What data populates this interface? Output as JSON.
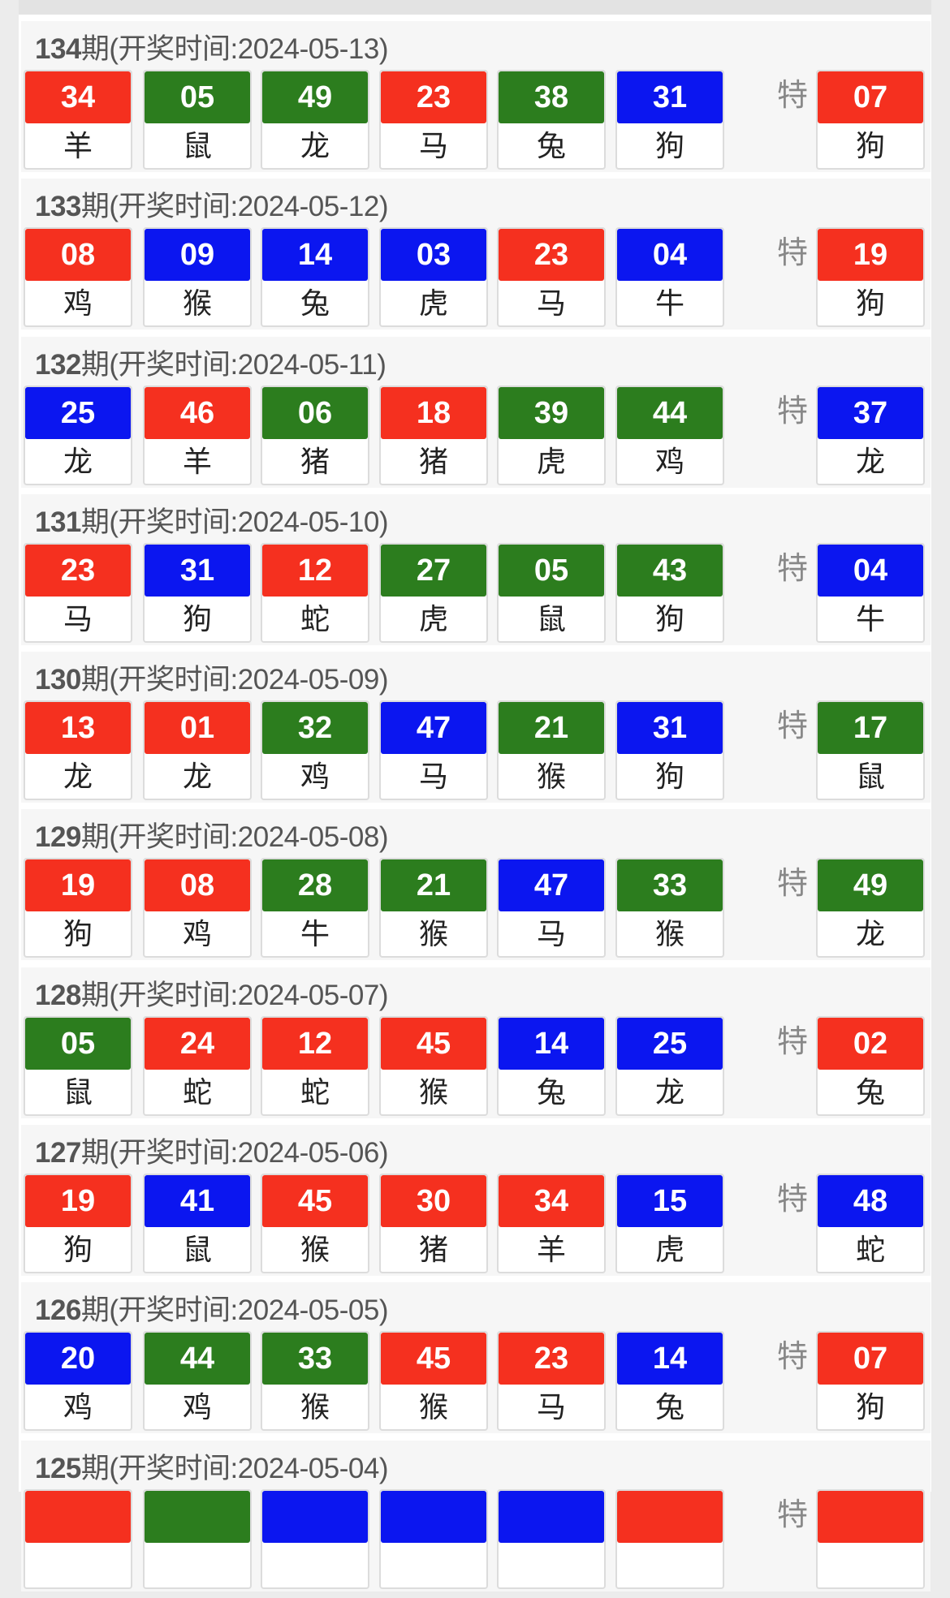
{
  "special_label": "特",
  "colors": {
    "red": "#f5301f",
    "green": "#2c7d1e",
    "blue": "#0b16f0"
  },
  "draws": [
    {
      "period": "134",
      "label": "期(开奖时间:2024-05-13)",
      "balls": [
        {
          "n": "34",
          "z": "羊",
          "c": "red"
        },
        {
          "n": "05",
          "z": "鼠",
          "c": "green"
        },
        {
          "n": "49",
          "z": "龙",
          "c": "green"
        },
        {
          "n": "23",
          "z": "马",
          "c": "red"
        },
        {
          "n": "38",
          "z": "兔",
          "c": "green"
        },
        {
          "n": "31",
          "z": "狗",
          "c": "blue"
        }
      ],
      "special": {
        "n": "07",
        "z": "狗",
        "c": "red"
      }
    },
    {
      "period": "133",
      "label": "期(开奖时间:2024-05-12)",
      "balls": [
        {
          "n": "08",
          "z": "鸡",
          "c": "red"
        },
        {
          "n": "09",
          "z": "猴",
          "c": "blue"
        },
        {
          "n": "14",
          "z": "兔",
          "c": "blue"
        },
        {
          "n": "03",
          "z": "虎",
          "c": "blue"
        },
        {
          "n": "23",
          "z": "马",
          "c": "red"
        },
        {
          "n": "04",
          "z": "牛",
          "c": "blue"
        }
      ],
      "special": {
        "n": "19",
        "z": "狗",
        "c": "red"
      }
    },
    {
      "period": "132",
      "label": "期(开奖时间:2024-05-11)",
      "balls": [
        {
          "n": "25",
          "z": "龙",
          "c": "blue"
        },
        {
          "n": "46",
          "z": "羊",
          "c": "red"
        },
        {
          "n": "06",
          "z": "猪",
          "c": "green"
        },
        {
          "n": "18",
          "z": "猪",
          "c": "red"
        },
        {
          "n": "39",
          "z": "虎",
          "c": "green"
        },
        {
          "n": "44",
          "z": "鸡",
          "c": "green"
        }
      ],
      "special": {
        "n": "37",
        "z": "龙",
        "c": "blue"
      }
    },
    {
      "period": "131",
      "label": "期(开奖时间:2024-05-10)",
      "balls": [
        {
          "n": "23",
          "z": "马",
          "c": "red"
        },
        {
          "n": "31",
          "z": "狗",
          "c": "blue"
        },
        {
          "n": "12",
          "z": "蛇",
          "c": "red"
        },
        {
          "n": "27",
          "z": "虎",
          "c": "green"
        },
        {
          "n": "05",
          "z": "鼠",
          "c": "green"
        },
        {
          "n": "43",
          "z": "狗",
          "c": "green"
        }
      ],
      "special": {
        "n": "04",
        "z": "牛",
        "c": "blue"
      }
    },
    {
      "period": "130",
      "label": "期(开奖时间:2024-05-09)",
      "balls": [
        {
          "n": "13",
          "z": "龙",
          "c": "red"
        },
        {
          "n": "01",
          "z": "龙",
          "c": "red"
        },
        {
          "n": "32",
          "z": "鸡",
          "c": "green"
        },
        {
          "n": "47",
          "z": "马",
          "c": "blue"
        },
        {
          "n": "21",
          "z": "猴",
          "c": "green"
        },
        {
          "n": "31",
          "z": "狗",
          "c": "blue"
        }
      ],
      "special": {
        "n": "17",
        "z": "鼠",
        "c": "green"
      }
    },
    {
      "period": "129",
      "label": "期(开奖时间:2024-05-08)",
      "balls": [
        {
          "n": "19",
          "z": "狗",
          "c": "red"
        },
        {
          "n": "08",
          "z": "鸡",
          "c": "red"
        },
        {
          "n": "28",
          "z": "牛",
          "c": "green"
        },
        {
          "n": "21",
          "z": "猴",
          "c": "green"
        },
        {
          "n": "47",
          "z": "马",
          "c": "blue"
        },
        {
          "n": "33",
          "z": "猴",
          "c": "green"
        }
      ],
      "special": {
        "n": "49",
        "z": "龙",
        "c": "green"
      }
    },
    {
      "period": "128",
      "label": "期(开奖时间:2024-05-07)",
      "balls": [
        {
          "n": "05",
          "z": "鼠",
          "c": "green"
        },
        {
          "n": "24",
          "z": "蛇",
          "c": "red"
        },
        {
          "n": "12",
          "z": "蛇",
          "c": "red"
        },
        {
          "n": "45",
          "z": "猴",
          "c": "red"
        },
        {
          "n": "14",
          "z": "兔",
          "c": "blue"
        },
        {
          "n": "25",
          "z": "龙",
          "c": "blue"
        }
      ],
      "special": {
        "n": "02",
        "z": "兔",
        "c": "red"
      }
    },
    {
      "period": "127",
      "label": "期(开奖时间:2024-05-06)",
      "balls": [
        {
          "n": "19",
          "z": "狗",
          "c": "red"
        },
        {
          "n": "41",
          "z": "鼠",
          "c": "blue"
        },
        {
          "n": "45",
          "z": "猴",
          "c": "red"
        },
        {
          "n": "30",
          "z": "猪",
          "c": "red"
        },
        {
          "n": "34",
          "z": "羊",
          "c": "red"
        },
        {
          "n": "15",
          "z": "虎",
          "c": "blue"
        }
      ],
      "special": {
        "n": "48",
        "z": "蛇",
        "c": "blue"
      }
    },
    {
      "period": "126",
      "label": "期(开奖时间:2024-05-05)",
      "balls": [
        {
          "n": "20",
          "z": "鸡",
          "c": "blue"
        },
        {
          "n": "44",
          "z": "鸡",
          "c": "green"
        },
        {
          "n": "33",
          "z": "猴",
          "c": "green"
        },
        {
          "n": "45",
          "z": "猴",
          "c": "red"
        },
        {
          "n": "23",
          "z": "马",
          "c": "red"
        },
        {
          "n": "14",
          "z": "兔",
          "c": "blue"
        }
      ],
      "special": {
        "n": "07",
        "z": "狗",
        "c": "red"
      }
    },
    {
      "period": "125",
      "label": "期(开奖时间:2024-05-04)",
      "balls": [
        {
          "c": "red"
        },
        {
          "c": "green"
        },
        {
          "c": "blue"
        },
        {
          "c": "blue"
        },
        {
          "c": "blue"
        },
        {
          "c": "red"
        }
      ],
      "special": {
        "c": "red"
      }
    }
  ]
}
